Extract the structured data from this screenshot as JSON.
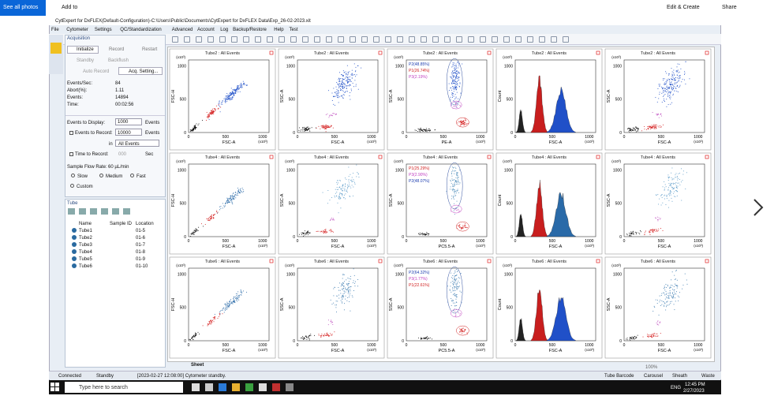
{
  "viewer": {
    "see_all": "See all photos",
    "add": "Add to",
    "edit": "Edit & Create",
    "share": "Share"
  },
  "window": {
    "title": "CytExpert for DxFLEX(Default-Configuration)-C:\\Users\\Public\\Documents\\CytExpert for DxFLEX Data\\Exp_26-02-2023.xit",
    "menu": [
      "File",
      "Cytometer",
      "Settings",
      "QC/Standardization",
      "Advanced",
      "Account",
      "Log",
      "Backup/Restore",
      "Help",
      "Test"
    ]
  },
  "acquisition": {
    "header": "Acquisition",
    "initialize": "Initialize",
    "record": "Record",
    "restart": "Restart",
    "standby": "Standby",
    "backflush": "Backflush",
    "auto_record": "Auto Record",
    "acq_setting": "Acq. Setting...",
    "stats": [
      {
        "label": "Events/Sec:",
        "value": "84"
      },
      {
        "label": "Abort(%):",
        "value": "1.11"
      },
      {
        "label": "Events:",
        "value": "14894"
      },
      {
        "label": "Time:",
        "value": "00:02:56"
      }
    ],
    "display_label": "Events to Display:",
    "display_value": "1000",
    "display_unit": "Events",
    "record_label": "Events to Record:",
    "record_value": "10000",
    "record_unit": "Events",
    "in_label": "in",
    "in_value": "All Events",
    "time_label": "Time to Record:",
    "time_value": "000",
    "time_unit": "Sec",
    "flow_label": "Sample Flow Rate:",
    "flow_value": "60 µL/min",
    "slow": "Slow",
    "medium": "Medium",
    "fast": "Fast",
    "custom": "Custom"
  },
  "tube": {
    "header": "Tube",
    "columns": [
      "Name",
      "Sample ID",
      "Location"
    ],
    "rows": [
      [
        "Tube1",
        "01-5"
      ],
      [
        "Tube2",
        "01-6"
      ],
      [
        "Tube3",
        "01-7"
      ],
      [
        "Tube4",
        "01-8"
      ],
      [
        "Tube5",
        "01-9"
      ],
      [
        "Tube6",
        "01-10"
      ]
    ]
  },
  "axis": {
    "ticks": [
      "0",
      "500",
      "1000"
    ],
    "scale": "(x10³)"
  },
  "plots": [
    {
      "title": "Tube2 : All Events",
      "x_label": "FSC-A",
      "y_label": "FSC-H",
      "kind": "diag",
      "blue": "#2050c8"
    },
    {
      "title": "Tube2 : All Events",
      "x_label": "FSC-A",
      "y_label": "SSC-A",
      "kind": "sso",
      "blue": "#2050c8"
    },
    {
      "title": "Tube2 : All Events",
      "x_label": "PE-A",
      "y_label": "SSC-A",
      "kind": "gated",
      "blue": "#2050c8",
      "gates": [
        {
          "label": "P2(48.85%)",
          "color": "#2040b0"
        },
        {
          "label": "P1(26.74%)",
          "color": "#d02020"
        },
        {
          "label": "P3(2.19%)",
          "color": "#c040c0"
        }
      ]
    },
    {
      "title": "Tube2 : All Events",
      "x_label": "FSC-A",
      "y_label": "Count",
      "kind": "hist",
      "blue": "#2050c8"
    },
    {
      "title": "Tube2 : All Events",
      "x_label": "FSC-A",
      "y_label": "SSC-A",
      "kind": "sso",
      "blue": "#2050c8"
    },
    {
      "title": "Tube4 : All Events",
      "x_label": "FSC-A",
      "y_label": "FSC-H",
      "kind": "diag",
      "blue": "#2a6aa8"
    },
    {
      "title": "Tube4 : All Events",
      "x_label": "FSC-A",
      "y_label": "SSC-A",
      "kind": "sso",
      "blue": "#5a9ac8"
    },
    {
      "title": "Tube4 : All Events",
      "x_label": "PC5.5-A",
      "y_label": "SSC-A",
      "kind": "gated",
      "blue": "#4a8ab8",
      "gates": [
        {
          "label": "P1(25.29%)",
          "color": "#d02020"
        },
        {
          "label": "P3(2.90%)",
          "color": "#c040c0"
        },
        {
          "label": "P2(48.07%)",
          "color": "#2040b0"
        }
      ]
    },
    {
      "title": "Tube4 : All Events",
      "x_label": "FSC-A",
      "y_label": "Count",
      "kind": "hist",
      "blue": "#2a6aa8"
    },
    {
      "title": "Tube4 : All Events",
      "x_label": "FSC-A",
      "y_label": "SSC-A",
      "kind": "sso",
      "blue": "#5a9ac8"
    },
    {
      "title": "Tube6 : All Events",
      "x_label": "FSC-A",
      "y_label": "FSC-H",
      "kind": "diag",
      "blue": "#2a6aa8"
    },
    {
      "title": "Tube6 : All Events",
      "x_label": "FSC-A",
      "y_label": "SSC-A",
      "kind": "sso",
      "blue": "#3a7ab0"
    },
    {
      "title": "Tube6 : All Events",
      "x_label": "PC5.5-A",
      "y_label": "SSC-A",
      "kind": "gated",
      "blue": "#3a7ab0",
      "gates": [
        {
          "label": "P2(64.32%)",
          "color": "#2040b0"
        },
        {
          "label": "P3(1.77%)",
          "color": "#c040c0"
        },
        {
          "label": "P1(22.61%)",
          "color": "#d02020"
        }
      ]
    },
    {
      "title": "Tube6 : All Events",
      "x_label": "FSC-A",
      "y_label": "Count",
      "kind": "hist",
      "blue": "#2050c8"
    },
    {
      "title": "Tube6 : All Events",
      "x_label": "FSC-A",
      "y_label": "SSC-A",
      "kind": "sso",
      "blue": "#3a7ab0"
    }
  ],
  "sheet_tab": "Sheet",
  "zoom": "100%",
  "status": {
    "connected": "Connected",
    "standby": "Standby",
    "message": "[2023-02-27 12:08:00] Cytometer standby.",
    "barcode": "Tube Barcode",
    "carousel": "Carousel",
    "sheath": "Sheath",
    "waste": "Waste"
  },
  "taskbar": {
    "search": "Type here to search",
    "lang": "ENG",
    "time": "12:45 PM",
    "date": "2/27/2023"
  }
}
